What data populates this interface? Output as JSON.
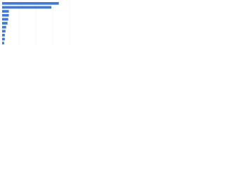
{
  "chart_data": {
    "type": "bar",
    "orientation": "horizontal",
    "categories": [
      null,
      null,
      null,
      null,
      null,
      null,
      null,
      null,
      null,
      null,
      null
    ],
    "values": [
      84,
      73,
      10,
      10,
      9,
      8,
      6,
      5,
      4,
      4,
      3
    ],
    "color": "#3f7ad6",
    "xlim": [
      0,
      100
    ],
    "grid": true
  }
}
